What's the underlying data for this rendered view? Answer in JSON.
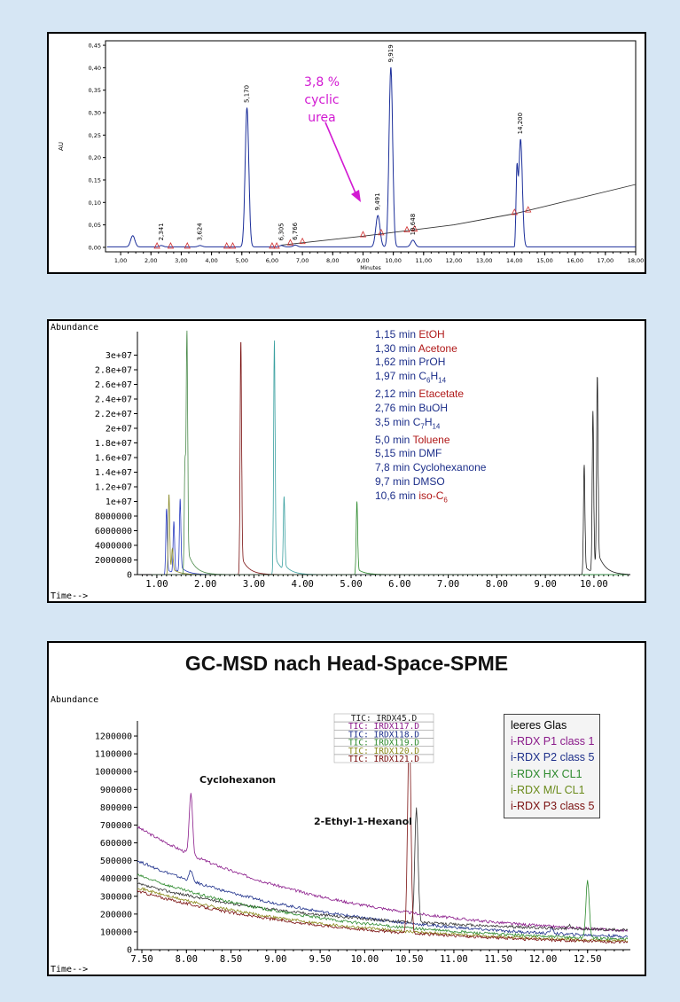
{
  "chart_data": [
    {
      "type": "line",
      "ylabel": "AU",
      "xlabel": "Minutes",
      "xlim": [
        0.5,
        18.0
      ],
      "ylim": [
        -0.01,
        0.46
      ],
      "x_ticks": [
        "1,00",
        "2,00",
        "3,00",
        "4,00",
        "5,00",
        "6,00",
        "7,00",
        "8,00",
        "9,00",
        "10,00",
        "11,00",
        "12,00",
        "13,00",
        "14,00",
        "15,00",
        "16,00",
        "17,00",
        "18,00"
      ],
      "y_ticks": [
        "0,00",
        "0,05",
        "0,10",
        "0,15",
        "0,20",
        "0,25",
        "0,30",
        "0,35",
        "0,40",
        "0,45"
      ],
      "peak_labels": [
        "2,341",
        "3,624",
        "5,170",
        "6,305",
        "6,766",
        "9,491",
        "9,919",
        "10,648",
        "14,200"
      ],
      "peaks": [
        {
          "x": 1.4,
          "y": 0.025
        },
        {
          "x": 2.341,
          "y": 0.003
        },
        {
          "x": 3.624,
          "y": 0.003
        },
        {
          "x": 5.17,
          "y": 0.31
        },
        {
          "x": 6.305,
          "y": 0.003
        },
        {
          "x": 6.766,
          "y": 0.004
        },
        {
          "x": 9.491,
          "y": 0.07
        },
        {
          "x": 9.919,
          "y": 0.4
        },
        {
          "x": 10.648,
          "y": 0.015
        },
        {
          "x": 14.2,
          "y": 0.24
        }
      ],
      "baseline_points": [
        [
          6.3,
          0.005
        ],
        [
          9.0,
          0.025
        ],
        [
          12.0,
          0.05
        ],
        [
          14.0,
          0.075
        ],
        [
          18.0,
          0.14
        ]
      ],
      "annotation": {
        "lines": [
          "3,8 %",
          "cyclic",
          "urea"
        ],
        "x": 9.491
      }
    },
    {
      "type": "line",
      "ylabel": "Abundance",
      "xlabel": "Time-->",
      "xlim": [
        0.6,
        10.75
      ],
      "ylim": [
        0,
        32000000
      ],
      "x_ticks": [
        "1.00",
        "2.00",
        "3.00",
        "4.00",
        "5.00",
        "6.00",
        "7.00",
        "8.00",
        "9.00",
        "10.00"
      ],
      "y_ticks": [
        "0",
        "2000000",
        "4000000",
        "6000000",
        "8000000",
        "1e+07",
        "1.2e+07",
        "1.4e+07",
        "1.6e+07",
        "1.8e+07",
        "2e+07",
        "2.2e+07",
        "2.4e+07",
        "2.6e+07",
        "2.8e+07",
        "3e+07"
      ],
      "legend": [
        {
          "time": "1,15 min",
          "compound": "EtOH",
          "sub": "",
          "tail": "",
          "color": "#b01818"
        },
        {
          "time": "1,30 min",
          "compound": "Acetone",
          "sub": "",
          "tail": "",
          "color": "#b01818"
        },
        {
          "time": "1,62 min",
          "compound": "PrOH",
          "sub": "",
          "tail": "",
          "color": "#1d2f8a"
        },
        {
          "time": "1,97 min",
          "compound": "C",
          "sub": "6",
          "mid": "H",
          "tail": "14",
          "color": "#1d2f8a"
        },
        {
          "time": "2,12 min",
          "compound": "Etacetate",
          "sub": "",
          "tail": "",
          "color": "#b01818"
        },
        {
          "time": "2,76 min",
          "compound": "BuOH",
          "sub": "",
          "tail": "",
          "color": "#1d2f8a"
        },
        {
          "time": "3,5 min",
          "compound": "C",
          "sub": "7",
          "mid": "H",
          "tail": "14",
          "color": "#1d2f8a"
        },
        {
          "time": "5,0 min",
          "compound": "Toluene",
          "sub": "",
          "tail": "",
          "color": "#b01818"
        },
        {
          "time": "5,15 min",
          "compound": "DMF",
          "sub": "",
          "tail": "",
          "color": "#1d2f8a"
        },
        {
          "time": "7,8 min",
          "compound": "Cyclohexanone",
          "sub": "",
          "tail": "",
          "color": "#1d2f8a"
        },
        {
          "time": "9,7 min",
          "compound": "DMSO",
          "sub": "",
          "tail": "",
          "color": "#1d2f8a"
        },
        {
          "time": "10,6 min",
          "compound": "iso-C",
          "sub": "6",
          "tail": "",
          "color": "#b01818"
        }
      ],
      "time_color": "#1d2f8a",
      "series": [
        {
          "color": "#2a3cc0",
          "peaks": [
            [
              1.2,
              9000000
            ],
            [
              1.35,
              7000000
            ],
            [
              1.48,
              10000000
            ]
          ]
        },
        {
          "color": "#8a8a2a",
          "peaks": [
            [
              1.25,
              11000000
            ],
            [
              1.32,
              3000000
            ]
          ]
        },
        {
          "color": "#4a8a4a",
          "peaks": [
            [
              1.62,
              32000000
            ],
            [
              1.58,
              15000000
            ]
          ]
        },
        {
          "color": "#7a1010",
          "peaks": [
            [
              2.73,
              32000000
            ]
          ]
        },
        {
          "color": "#3aa0a0",
          "peaks": [
            [
              3.42,
              32000000
            ],
            [
              3.62,
              10000000
            ]
          ]
        },
        {
          "color": "#2d8a2d",
          "peaks": [
            [
              5.12,
              10000000
            ]
          ]
        },
        {
          "color": "#222222",
          "peaks": [
            [
              9.98,
              22000000
            ],
            [
              10.07,
              26000000
            ],
            [
              9.8,
              15000000
            ]
          ]
        }
      ]
    },
    {
      "type": "line",
      "title": "GC-MSD nach Head-Space-SPME",
      "ylabel": "Abundance",
      "xlabel": "Time-->",
      "xlim": [
        7.45,
        12.98
      ],
      "ylim": [
        0,
        1250000
      ],
      "x_ticks": [
        "7.50",
        "8.00",
        "8.50",
        "9.00",
        "9.50",
        "10.00",
        "10.50",
        "11.00",
        "11.50",
        "12.00",
        "12.50"
      ],
      "y_ticks": [
        "0",
        "100000",
        "200000",
        "300000",
        "400000",
        "500000",
        "600000",
        "700000",
        "800000",
        "900000",
        "1000000",
        "1100000",
        "1200000"
      ],
      "tic_labels": [
        {
          "text": "TIC: IRDX45.D",
          "color": "#222222"
        },
        {
          "text": "TIC: IRDX117.D",
          "color": "#8a1a8a"
        },
        {
          "text": "TIC: IRDX118.D",
          "color": "#1d2f8a"
        },
        {
          "text": "TIC: IRDX119.D",
          "color": "#2d8a2d"
        },
        {
          "text": "TIC: IRDX120.D",
          "color": "#8a8a1a"
        },
        {
          "text": "TIC: IRDX121.D",
          "color": "#7a1010"
        }
      ],
      "legend": [
        {
          "name": "leeres Glas",
          "color": "#000000"
        },
        {
          "name": "i-RDX P1 class 1",
          "color": "#8a1a8a"
        },
        {
          "name": "i-RDX P2 class 5",
          "color": "#1d2f8a"
        },
        {
          "name": "i-RDX HX CL1",
          "color": "#2d8a2d"
        },
        {
          "name": "i-RDX M/L CL1",
          "color": "#6a8a1a"
        },
        {
          "name": "i-RDX P3 class 5",
          "color": "#7a1010"
        }
      ],
      "annotations": [
        "Cyclohexanon",
        "2-Ethyl-1-Hexanol"
      ],
      "series": [
        {
          "name": "IRDX117",
          "color": "#8a1a8a",
          "start": 690000,
          "end": 60000,
          "peaks": [
            [
              8.05,
              350000
            ]
          ]
        },
        {
          "name": "IRDX118",
          "color": "#1d2f8a",
          "start": 500000,
          "end": 40000,
          "peaks": [
            [
              8.05,
              60000
            ],
            [
              12.1,
              30000
            ]
          ]
        },
        {
          "name": "IRDX45",
          "color": "#333333",
          "start": 370000,
          "end": 90000,
          "peaks": [
            [
              10.58,
              650000
            ],
            [
              12.3,
              20000
            ]
          ]
        },
        {
          "name": "IRDX119",
          "color": "#2d8a2d",
          "start": 420000,
          "end": 30000,
          "peaks": [
            [
              12.5,
              330000
            ]
          ]
        },
        {
          "name": "IRDX120",
          "color": "#8a8a1a",
          "start": 350000,
          "end": 25000,
          "peaks": []
        },
        {
          "name": "IRDX121",
          "color": "#7a1010",
          "start": 330000,
          "end": 20000,
          "peaks": [
            [
              10.5,
              1150000
            ]
          ]
        }
      ]
    }
  ]
}
